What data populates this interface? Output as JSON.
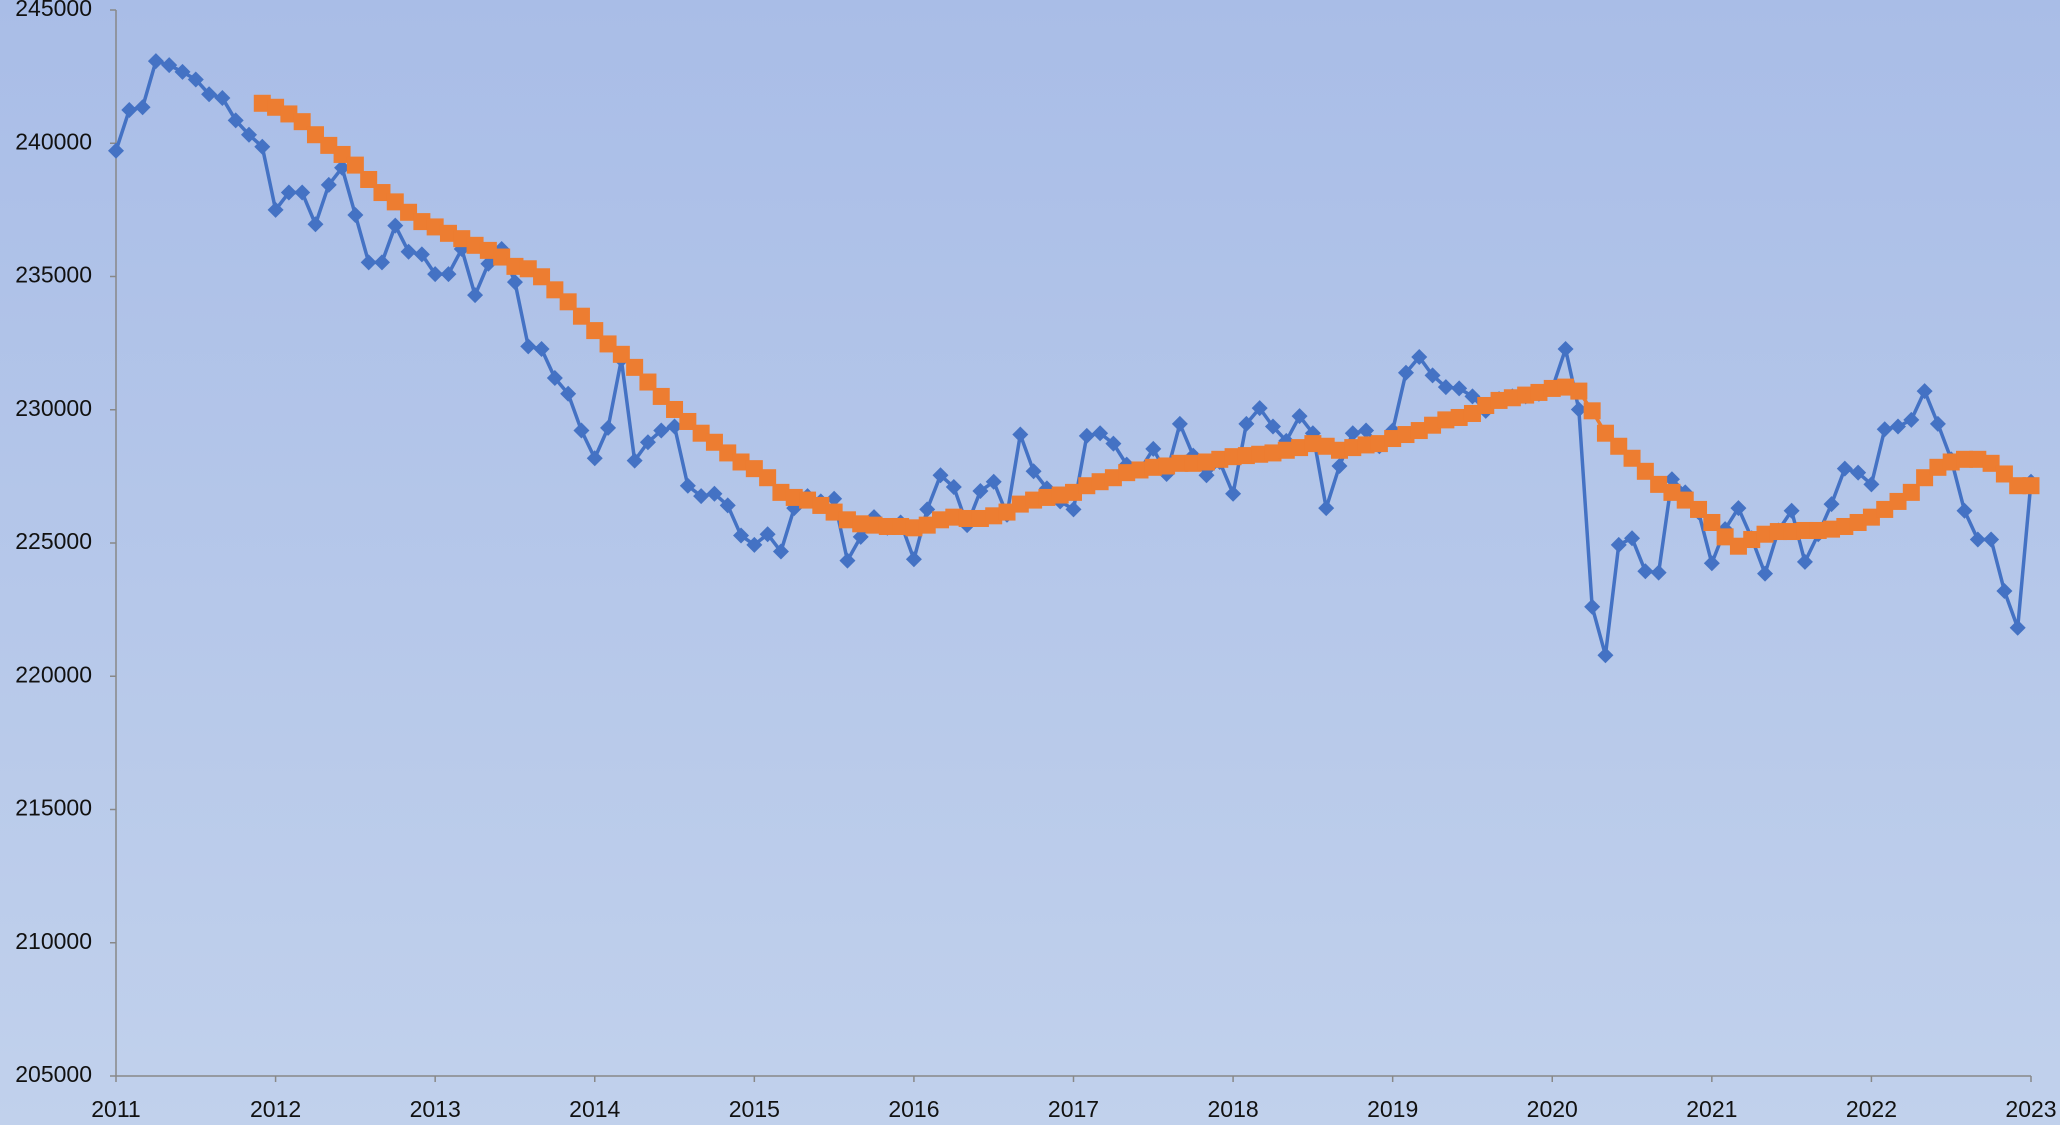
{
  "chart_data": {
    "type": "line",
    "categories": [
      "2011",
      null,
      null,
      null,
      null,
      null,
      null,
      null,
      null,
      null,
      null,
      null,
      "2012",
      null,
      null,
      null,
      null,
      null,
      null,
      null,
      null,
      null,
      null,
      null,
      "2013",
      null,
      null,
      null,
      null,
      null,
      null,
      null,
      null,
      null,
      null,
      null,
      "2014",
      null,
      null,
      null,
      null,
      null,
      null,
      null,
      null,
      null,
      null,
      null,
      "2015",
      null,
      null,
      null,
      null,
      null,
      null,
      null,
      null,
      null,
      null,
      null,
      "2016",
      null,
      null,
      null,
      null,
      null,
      null,
      null,
      null,
      null,
      null,
      null,
      "2017",
      null,
      null,
      null,
      null,
      null,
      null,
      null,
      null,
      null,
      null,
      null,
      "2018",
      null,
      null,
      null,
      null,
      null,
      null,
      null,
      null,
      null,
      null,
      null,
      "2019",
      null,
      null,
      null,
      null,
      null,
      null,
      null,
      null,
      null,
      null,
      null,
      "2020",
      null,
      null,
      null,
      null,
      null,
      null,
      null,
      null,
      null,
      null,
      null,
      "2021",
      null,
      null,
      null,
      null,
      null,
      null,
      null,
      null,
      null,
      null,
      null,
      "2022",
      null,
      null,
      null,
      null,
      null,
      null,
      null,
      null,
      null,
      null,
      null,
      "2023"
    ],
    "series": [
      {
        "color": "#4472c4",
        "marker": "diamond",
        "values": [
          239720,
          241250,
          241350,
          243080,
          242930,
          242680,
          242390,
          241840,
          241700,
          240860,
          240320,
          239870,
          237500,
          238150,
          238150,
          236960,
          238440,
          239080,
          237310,
          235530,
          235530,
          236910,
          235930,
          235830,
          235090,
          235090,
          236030,
          234300,
          235480,
          236030,
          234790,
          232380,
          232280,
          231190,
          230600,
          229220,
          228180,
          229320,
          231880,
          228090,
          228780,
          229220,
          229370,
          227150,
          226760,
          226850,
          226410,
          225280,
          224930,
          225330,
          224680,
          226310,
          226760,
          226560,
          226660,
          224340,
          225230,
          225970,
          225570,
          225770,
          224390,
          226260,
          227540,
          227100,
          225670,
          226950,
          227300,
          226060,
          229070,
          227690,
          227050,
          226560,
          226260,
          229020,
          229120,
          228730,
          227940,
          227740,
          228530,
          227590,
          229470,
          228280,
          227540,
          228040,
          226850,
          229470,
          230060,
          229370,
          228830,
          229760,
          229120,
          226310,
          227890,
          229120,
          229220,
          228630,
          229220,
          231390,
          231980,
          231290,
          230850,
          230800,
          230500,
          229960,
          230400,
          230500,
          230500,
          230600,
          230800,
          232280,
          230010,
          222610,
          220790,
          224930,
          225180,
          223940,
          223890,
          227390,
          226900,
          226160,
          224240,
          225520,
          226310,
          225180,
          223850,
          225470,
          226210,
          224290,
          225330,
          226460,
          227790,
          227640,
          227200,
          229270,
          229370,
          229620,
          230700,
          229470,
          228140,
          226210,
          225130,
          225130,
          223200,
          221820,
          227300
        ]
      },
      {
        "color": "#ed7d31",
        "marker": "square",
        "values": [
          null,
          null,
          null,
          null,
          null,
          null,
          null,
          null,
          null,
          null,
          null,
          241500,
          241350,
          241100,
          240810,
          240320,
          239920,
          239580,
          239180,
          238640,
          238150,
          237800,
          237410,
          237060,
          236860,
          236620,
          236420,
          236170,
          235980,
          235730,
          235380,
          235290,
          234990,
          234500,
          234050,
          233510,
          232970,
          232470,
          232080,
          231590,
          231040,
          230500,
          230010,
          229560,
          229120,
          228780,
          228380,
          228040,
          227790,
          227450,
          226900,
          226710,
          226610,
          226410,
          226160,
          225870,
          225720,
          225670,
          225620,
          225620,
          225570,
          225670,
          225870,
          225970,
          225920,
          225920,
          226020,
          226160,
          226460,
          226610,
          226710,
          226800,
          226900,
          227150,
          227300,
          227450,
          227640,
          227740,
          227840,
          227890,
          227990,
          227990,
          228040,
          228140,
          228240,
          228280,
          228330,
          228380,
          228480,
          228580,
          228730,
          228630,
          228480,
          228580,
          228680,
          228730,
          228920,
          229070,
          229220,
          229420,
          229620,
          229710,
          229860,
          230160,
          230350,
          230450,
          230550,
          230650,
          230800,
          230850,
          230700,
          229960,
          229120,
          228630,
          228180,
          227690,
          227200,
          226900,
          226610,
          226260,
          225770,
          225230,
          224880,
          225130,
          225330,
          225430,
          225430,
          225470,
          225470,
          225520,
          225620,
          225770,
          225970,
          226260,
          226560,
          226900,
          227450,
          227840,
          228040,
          228140,
          228140,
          227990,
          227590,
          227150,
          227150
        ]
      }
    ],
    "ylim": [
      205000,
      245000
    ],
    "yticks": [
      205000,
      210000,
      215000,
      220000,
      225000,
      230000,
      235000,
      240000,
      245000
    ]
  }
}
